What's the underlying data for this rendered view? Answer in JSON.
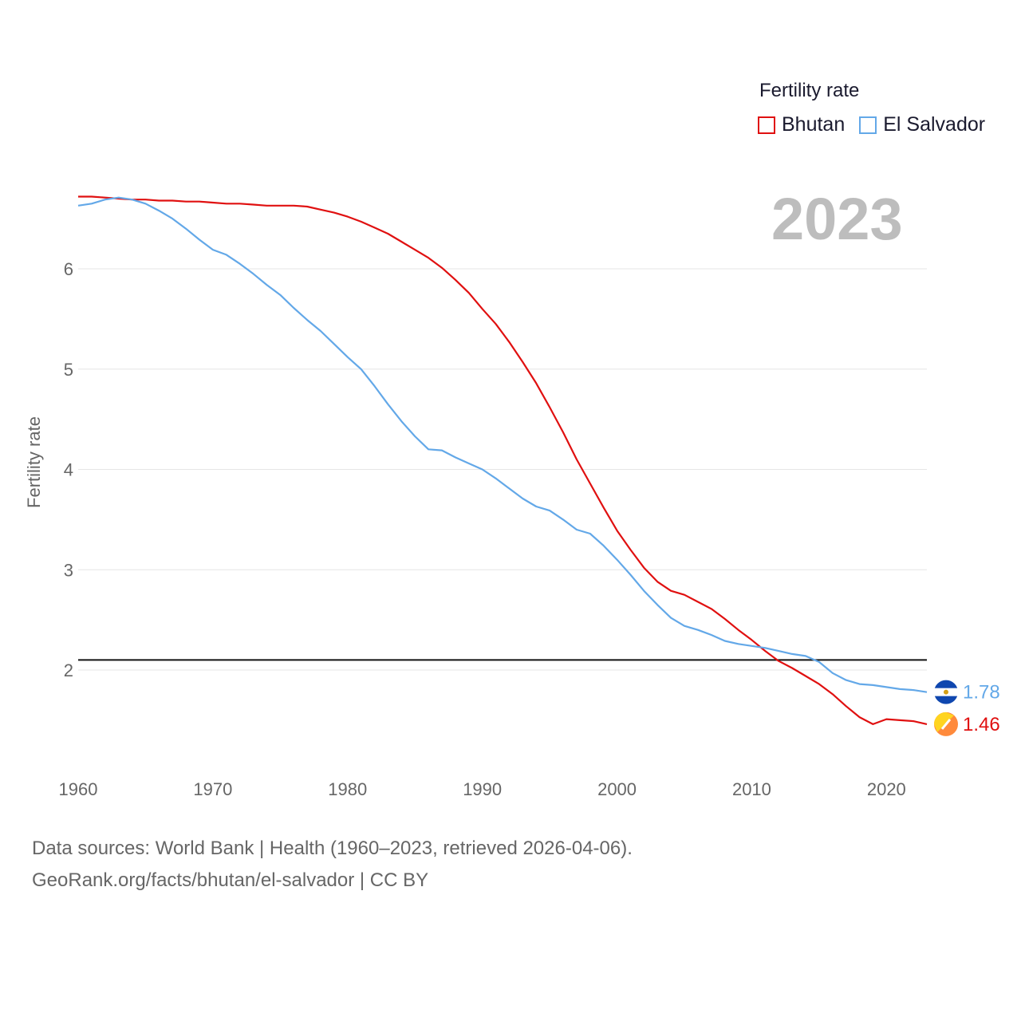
{
  "legend": {
    "title": "Fertility rate",
    "items": [
      {
        "name": "Bhutan",
        "color": "#e01010"
      },
      {
        "name": "El Salvador",
        "color": "#63a8e8"
      }
    ]
  },
  "year_display": "2023",
  "source": {
    "line1": "Data sources: World Bank | Health (1960–2023, retrieved 2026-04-06).",
    "line2": "GeoRank.org/facts/bhutan/el-salvador | CC BY"
  },
  "chart_data": {
    "type": "line",
    "title": "Fertility rate",
    "xlabel": "",
    "ylabel": "Fertility rate",
    "xlim": [
      1960,
      2023
    ],
    "ylim": [
      1.0,
      7.0
    ],
    "x_ticks": [
      "1960",
      "1970",
      "1980",
      "1990",
      "2000",
      "2010",
      "2020"
    ],
    "y_ticks": [
      "2",
      "3",
      "4",
      "5",
      "6"
    ],
    "reference_line": {
      "value": 2.1
    },
    "series": [
      {
        "name": "Bhutan",
        "color": "#e01010",
        "end_label": "1.46",
        "x": [
          1960,
          1961,
          1962,
          1963,
          1964,
          1965,
          1966,
          1967,
          1968,
          1969,
          1970,
          1971,
          1972,
          1973,
          1974,
          1975,
          1976,
          1977,
          1978,
          1979,
          1980,
          1981,
          1982,
          1983,
          1984,
          1985,
          1986,
          1987,
          1988,
          1989,
          1990,
          1991,
          1992,
          1993,
          1994,
          1995,
          1996,
          1997,
          1998,
          1999,
          2000,
          2001,
          2002,
          2003,
          2004,
          2005,
          2006,
          2007,
          2008,
          2009,
          2010,
          2011,
          2012,
          2013,
          2014,
          2015,
          2016,
          2017,
          2018,
          2019,
          2020,
          2021,
          2022,
          2023
        ],
        "values": [
          6.72,
          6.72,
          6.71,
          6.7,
          6.69,
          6.69,
          6.68,
          6.68,
          6.67,
          6.67,
          6.66,
          6.65,
          6.65,
          6.64,
          6.63,
          6.63,
          6.63,
          6.62,
          6.59,
          6.56,
          6.52,
          6.47,
          6.41,
          6.35,
          6.27,
          6.19,
          6.11,
          6.01,
          5.89,
          5.76,
          5.6,
          5.45,
          5.27,
          5.07,
          4.86,
          4.62,
          4.37,
          4.1,
          3.86,
          3.62,
          3.39,
          3.2,
          3.02,
          2.88,
          2.79,
          2.75,
          2.68,
          2.61,
          2.51,
          2.4,
          2.3,
          2.19,
          2.09,
          2.02,
          1.94,
          1.86,
          1.76,
          1.64,
          1.53,
          1.46,
          1.51,
          1.5,
          1.49,
          1.46
        ]
      },
      {
        "name": "El Salvador",
        "color": "#63a8e8",
        "end_label": "1.78",
        "x": [
          1960,
          1961,
          1962,
          1963,
          1964,
          1965,
          1966,
          1967,
          1968,
          1969,
          1970,
          1971,
          1972,
          1973,
          1974,
          1975,
          1976,
          1977,
          1978,
          1979,
          1980,
          1981,
          1982,
          1983,
          1984,
          1985,
          1986,
          1987,
          1988,
          1989,
          1990,
          1991,
          1992,
          1993,
          1994,
          1995,
          1996,
          1997,
          1998,
          1999,
          2000,
          2001,
          2002,
          2003,
          2004,
          2005,
          2006,
          2007,
          2008,
          2009,
          2010,
          2011,
          2012,
          2013,
          2014,
          2015,
          2016,
          2017,
          2018,
          2019,
          2020,
          2021,
          2022,
          2023
        ],
        "values": [
          6.63,
          6.65,
          6.69,
          6.71,
          6.69,
          6.65,
          6.58,
          6.5,
          6.4,
          6.29,
          6.19,
          6.14,
          6.05,
          5.95,
          5.84,
          5.74,
          5.61,
          5.49,
          5.38,
          5.25,
          5.12,
          5.0,
          4.83,
          4.65,
          4.48,
          4.33,
          4.2,
          4.19,
          4.12,
          4.06,
          4.0,
          3.91,
          3.81,
          3.71,
          3.63,
          3.59,
          3.5,
          3.4,
          3.36,
          3.24,
          3.1,
          2.95,
          2.79,
          2.65,
          2.52,
          2.44,
          2.4,
          2.35,
          2.29,
          2.26,
          2.24,
          2.22,
          2.19,
          2.16,
          2.14,
          2.08,
          1.97,
          1.9,
          1.86,
          1.85,
          1.83,
          1.81,
          1.8,
          1.78
        ]
      }
    ]
  }
}
